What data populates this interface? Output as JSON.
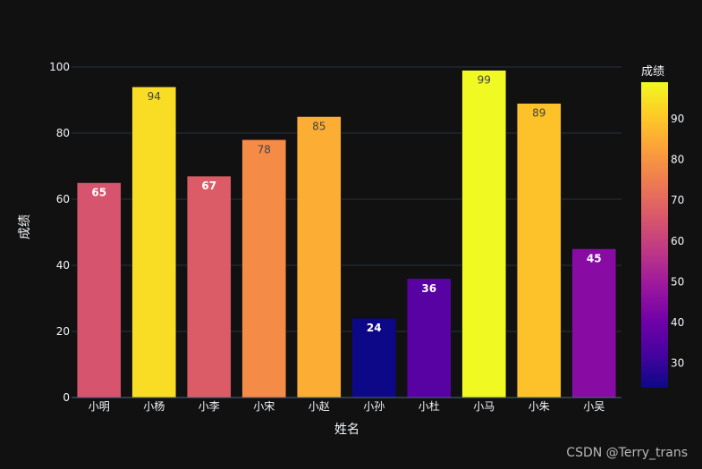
{
  "chart_data": {
    "type": "bar",
    "xlabel": "姓名",
    "ylabel": "成绩",
    "categories": [
      "小明",
      "小杨",
      "小李",
      "小宋",
      "小赵",
      "小孙",
      "小杜",
      "小马",
      "小朱",
      "小吴"
    ],
    "values": [
      65,
      94,
      67,
      78,
      85,
      24,
      36,
      99,
      89,
      45
    ],
    "ylim": [
      0,
      100
    ],
    "yticks": [
      0,
      20,
      40,
      60,
      80,
      100
    ],
    "grid": true,
    "colorscale": "Plasma",
    "color_range": [
      24,
      99
    ],
    "colorbar": {
      "title": "成绩",
      "ticks": [
        30,
        40,
        50,
        60,
        70,
        80,
        90
      ]
    }
  },
  "watermark": "CSDN @Terry_trans",
  "colors": {
    "background": "#111111",
    "grid": "#283442",
    "text": "#f2f5fa"
  }
}
